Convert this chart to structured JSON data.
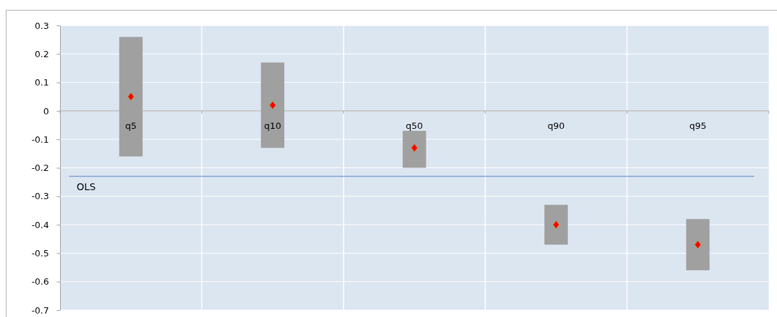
{
  "chart_data": {
    "type": "bar",
    "categories": [
      "q5",
      "q10",
      "q50",
      "q90",
      "q95"
    ],
    "series": [
      {
        "color": "#a0a0a0",
        "base": [
          -0.16,
          -0.13,
          -0.2,
          -0.47,
          -0.56
        ],
        "values": [
          0.42,
          0.3,
          0.13,
          0.14,
          0.18
        ]
      },
      {
        "type": "scatter",
        "color": "#ff0000",
        "marker": "diamond",
        "x": [
          "q5",
          "q10",
          "q50",
          "q90",
          "q95"
        ],
        "values": [
          0.05,
          0.02,
          -0.13,
          -0.4,
          -0.47
        ]
      }
    ],
    "ylim": [
      -0.7,
      0.3
    ],
    "yticks": [
      -0.7,
      -0.6,
      -0.5,
      -0.4,
      -0.3,
      -0.2,
      -0.1,
      0,
      0.1,
      0.2,
      0.3
    ],
    "grid": true,
    "ref_lines": [
      {
        "axis": "y",
        "value": -0.23,
        "label": "OLS",
        "color": "#4f81bd"
      }
    ]
  }
}
